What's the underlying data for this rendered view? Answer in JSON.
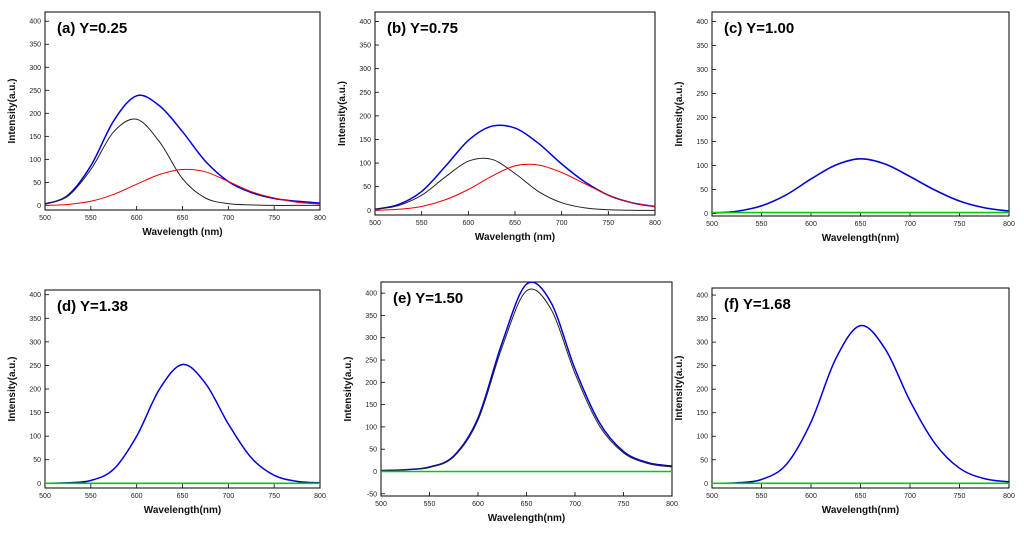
{
  "chart_data": [
    {
      "type": "line",
      "title": "(a) Y=0.25",
      "xlabel": "Wavelength (nm)",
      "ylabel": "Intensity(a.u.)",
      "xlim": [
        500,
        800
      ],
      "ylim": [
        -10,
        420
      ],
      "xticks": [
        500,
        550,
        600,
        650,
        700,
        750,
        800
      ],
      "yticks": [
        0,
        50,
        100,
        150,
        200,
        250,
        300,
        350,
        400
      ],
      "series": [
        {
          "color": "#0000dd",
          "x": [
            500,
            525,
            550,
            575,
            600,
            625,
            650,
            675,
            700,
            725,
            750,
            775,
            800
          ],
          "y": [
            3,
            22,
            86,
            184,
            238,
            216,
            160,
            96,
            52,
            28,
            15,
            9,
            5
          ]
        },
        {
          "color": "#222222",
          "x": [
            500,
            525,
            550,
            575,
            600,
            625,
            650,
            675,
            700,
            725,
            750,
            775,
            800
          ],
          "y": [
            3,
            20,
            78,
            160,
            187,
            138,
            58,
            16,
            4,
            1,
            0,
            0,
            0
          ]
        },
        {
          "color": "#ee0000",
          "x": [
            500,
            525,
            550,
            575,
            600,
            625,
            650,
            675,
            700,
            725,
            750,
            775,
            800
          ],
          "y": [
            0,
            2,
            9,
            24,
            46,
            67,
            78,
            73,
            52,
            30,
            16,
            7,
            3
          ]
        }
      ]
    },
    {
      "type": "line",
      "title": "(b) Y=0.75",
      "xlabel": "Wavelength (nm)",
      "ylabel": "Intensity(a.u.)",
      "xlim": [
        500,
        800
      ],
      "ylim": [
        -10,
        420
      ],
      "xticks": [
        500,
        550,
        600,
        650,
        700,
        750,
        800
      ],
      "yticks": [
        0,
        50,
        100,
        150,
        200,
        250,
        300,
        350,
        400
      ],
      "series": [
        {
          "color": "#0000dd",
          "x": [
            500,
            525,
            550,
            575,
            600,
            625,
            650,
            675,
            700,
            725,
            750,
            775,
            800
          ],
          "y": [
            2,
            12,
            40,
            92,
            148,
            178,
            174,
            142,
            98,
            60,
            32,
            16,
            8
          ]
        },
        {
          "color": "#222222",
          "x": [
            500,
            525,
            550,
            575,
            600,
            625,
            650,
            675,
            700,
            725,
            750,
            775,
            800
          ],
          "y": [
            2,
            10,
            32,
            70,
            104,
            108,
            78,
            40,
            16,
            5,
            1,
            0,
            0
          ]
        },
        {
          "color": "#ee0000",
          "x": [
            500,
            525,
            550,
            575,
            600,
            625,
            650,
            675,
            700,
            725,
            750,
            775,
            800
          ],
          "y": [
            0,
            2,
            8,
            22,
            44,
            72,
            94,
            96,
            80,
            56,
            32,
            16,
            8
          ]
        }
      ]
    },
    {
      "type": "line",
      "title": "(c) Y=1.00",
      "xlabel": "Wavelength(nm)",
      "ylabel": "Intensity(a.u.)",
      "xlim": [
        500,
        800
      ],
      "ylim": [
        -5,
        420
      ],
      "xticks": [
        500,
        550,
        600,
        650,
        700,
        750,
        800
      ],
      "yticks": [
        0,
        50,
        100,
        150,
        200,
        250,
        300,
        350,
        400
      ],
      "series": [
        {
          "color": "#888888",
          "x": [
            500,
            525,
            550,
            575,
            600,
            625,
            650,
            675,
            700,
            725,
            750,
            775,
            800
          ],
          "y": [
            1,
            5,
            17,
            40,
            73,
            102,
            115,
            104,
            78,
            50,
            27,
            13,
            6
          ]
        },
        {
          "color": "#0000dd",
          "x": [
            500,
            525,
            550,
            575,
            600,
            625,
            650,
            675,
            700,
            725,
            750,
            775,
            800
          ],
          "y": [
            1,
            5,
            16,
            39,
            72,
            101,
            114,
            103,
            77,
            49,
            26,
            12,
            5
          ]
        },
        {
          "color": "#00cc00",
          "x": [
            500,
            800
          ],
          "y": [
            2,
            2
          ]
        }
      ]
    },
    {
      "type": "line",
      "title": "(d) Y=1.38",
      "xlabel": "Wavelength(nm)",
      "ylabel": "Intensity(a.u.)",
      "xlim": [
        500,
        800
      ],
      "ylim": [
        -10,
        410
      ],
      "xticks": [
        500,
        550,
        600,
        650,
        700,
        750,
        800
      ],
      "yticks": [
        0,
        50,
        100,
        150,
        200,
        250,
        300,
        350,
        400
      ],
      "series": [
        {
          "color": "#0000dd",
          "x": [
            500,
            525,
            550,
            575,
            600,
            625,
            650,
            675,
            700,
            725,
            750,
            775,
            800
          ],
          "y": [
            0,
            1,
            6,
            30,
            100,
            200,
            252,
            212,
            126,
            54,
            17,
            4,
            1
          ]
        },
        {
          "color": "#00cc00",
          "x": [
            500,
            800
          ],
          "y": [
            0,
            0
          ]
        }
      ]
    },
    {
      "type": "line",
      "title": "(e) Y=1.50",
      "xlabel": "Wavelength(nm)",
      "ylabel": "Intensity(a.u.)",
      "xlim": [
        500,
        800
      ],
      "ylim": [
        -55,
        425
      ],
      "xticks": [
        500,
        550,
        600,
        650,
        700,
        750,
        800
      ],
      "yticks": [
        -50,
        0,
        50,
        100,
        150,
        200,
        250,
        300,
        350,
        400
      ],
      "series": [
        {
          "color": "#0000dd",
          "x": [
            500,
            525,
            550,
            575,
            600,
            625,
            650,
            675,
            700,
            725,
            750,
            775,
            800
          ],
          "y": [
            2,
            4,
            10,
            35,
            120,
            290,
            420,
            380,
            230,
            110,
            45,
            20,
            12
          ]
        },
        {
          "color": "#222222",
          "x": [
            500,
            525,
            550,
            575,
            600,
            625,
            650,
            675,
            700,
            725,
            750,
            775,
            800
          ],
          "y": [
            2,
            4,
            9,
            33,
            115,
            280,
            405,
            365,
            220,
            103,
            42,
            18,
            10
          ]
        },
        {
          "color": "#00cc00",
          "x": [
            500,
            800
          ],
          "y": [
            0,
            0
          ]
        }
      ]
    },
    {
      "type": "line",
      "title": "(f) Y=1.68",
      "xlabel": "Wavelength(nm)",
      "ylabel": "Intensity(a.u.)",
      "xlim": [
        500,
        800
      ],
      "ylim": [
        -10,
        415
      ],
      "xticks": [
        500,
        550,
        600,
        650,
        700,
        750,
        800
      ],
      "yticks": [
        0,
        50,
        100,
        150,
        200,
        250,
        300,
        350,
        400
      ],
      "series": [
        {
          "color": "#0000dd",
          "x": [
            500,
            525,
            550,
            575,
            600,
            625,
            650,
            675,
            700,
            725,
            750,
            775,
            800
          ],
          "y": [
            0,
            1,
            8,
            40,
            130,
            265,
            335,
            285,
            175,
            85,
            32,
            10,
            3
          ]
        },
        {
          "color": "#00cc00",
          "x": [
            500,
            800
          ],
          "y": [
            0,
            0
          ]
        }
      ]
    }
  ]
}
